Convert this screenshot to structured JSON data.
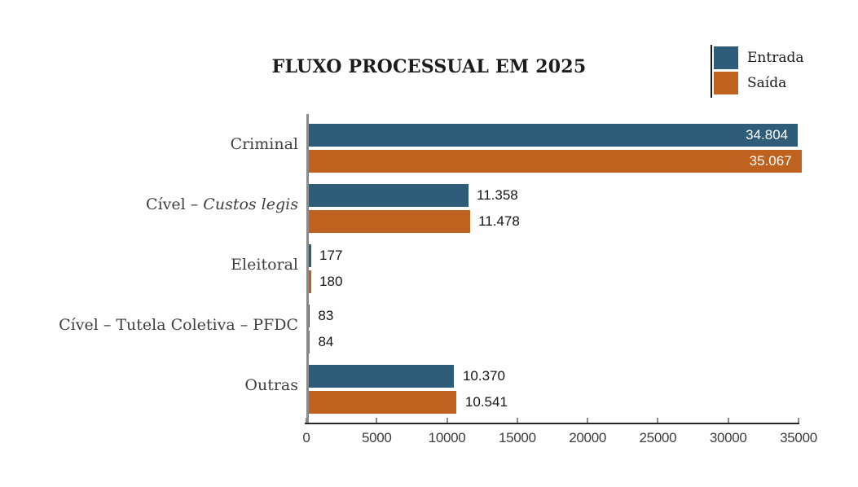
{
  "chart_data": {
    "type": "bar",
    "orientation": "horizontal",
    "title": "FLUXO PROCESSUAL EM 2025",
    "categories": [
      "Criminal",
      "Cível – Custos legis",
      "Eleitoral",
      "Cível – Tutela Coletiva – PFDC",
      "Outras"
    ],
    "categories_italic_parts": [
      "",
      "Custos legis",
      "",
      "",
      ""
    ],
    "series": [
      {
        "name": "Entrada",
        "color": "#2e5c79",
        "values": [
          34804,
          11358,
          177,
          83,
          10370
        ],
        "value_labels": [
          "34.804",
          "11.358",
          "177",
          "83",
          "10.370"
        ]
      },
      {
        "name": "Saída",
        "color": "#c0621f",
        "values": [
          35067,
          11478,
          180,
          84,
          10541
        ],
        "value_labels": [
          "35.067",
          "11.478",
          "180",
          "84",
          "10.541"
        ]
      }
    ],
    "xlim": [
      0,
      35000
    ],
    "x_ticks": [
      0,
      5000,
      10000,
      15000,
      20000,
      25000,
      30000,
      35000
    ],
    "x_tick_labels": [
      "0",
      "5000",
      "10000",
      "15000",
      "20000",
      "25000",
      "30000",
      "35000"
    ],
    "legend_position": "top-right",
    "grid": false
  },
  "colors": {
    "axis_x": "#262626",
    "axis_y": "#8a8a8a",
    "value_label_inside": "#ffffff",
    "value_label_outside": "#141414",
    "background": "#ffffff"
  }
}
